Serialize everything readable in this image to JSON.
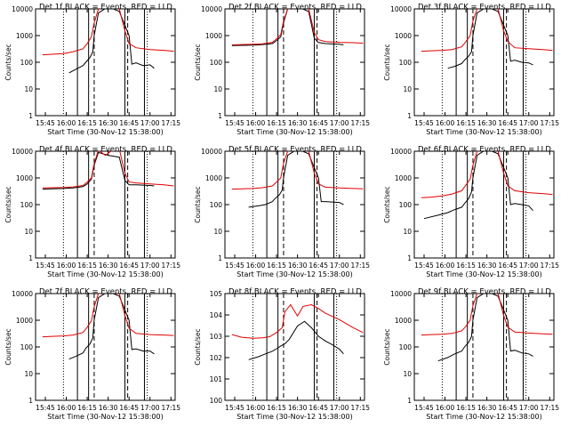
{
  "chart_data": [
    {
      "type": "line",
      "title": "Det 1f BLACK = Events, RED = LLD",
      "xlabel": "Start Time (30-Nov-12 15:38:00)",
      "ylabel": "Counts/sec",
      "x_ticks": [
        "15:45",
        "16:00",
        "16:15",
        "16:30",
        "16:45",
        "17:00",
        "17:15"
      ],
      "y_ticks": [
        "1",
        "10",
        "100",
        "1000",
        "10000"
      ],
      "ylim": [
        1,
        10000
      ],
      "y_scale": "log",
      "series": [
        {
          "color": "#000000",
          "x": [
            "16:02",
            "16:07",
            "16:12",
            "16:14",
            "16:17",
            "16:19",
            "16:20",
            "16:23",
            "16:30",
            "16:38",
            "16:45",
            "16:47",
            "16:50",
            "16:55",
            "17:00",
            "17:03"
          ],
          "values": [
            40,
            55,
            75,
            100,
            150,
            250,
            1000,
            7000,
            12000,
            8000,
            1000,
            85,
            95,
            75,
            80,
            60
          ]
        },
        {
          "color": "#e00000",
          "x": [
            "15:43",
            "15:50",
            "15:58",
            "16:05",
            "16:12",
            "16:15",
            "16:18",
            "16:20",
            "16:23",
            "16:30",
            "16:38",
            "16:42",
            "16:45",
            "16:50",
            "17:00",
            "17:10",
            "17:17"
          ],
          "values": [
            190,
            200,
            210,
            250,
            320,
            500,
            900,
            3000,
            10000,
            12000,
            10000,
            1500,
            500,
            350,
            300,
            280,
            260
          ]
        }
      ]
    },
    {
      "type": "line",
      "title": "Det 2f BLACK = Events, RED = LLD",
      "xlabel": "Start Time (30-Nov-12 15:38:00)",
      "ylabel": "Counts/sec",
      "x_ticks": [
        "15:45",
        "16:00",
        "16:15",
        "16:30",
        "16:45",
        "17:00",
        "17:15"
      ],
      "y_ticks": [
        "1",
        "10",
        "100",
        "1000",
        "10000"
      ],
      "ylim": [
        1,
        10000
      ],
      "y_scale": "log",
      "series": [
        {
          "color": "#000000",
          "x": [
            "15:43",
            "15:50",
            "15:58",
            "16:05",
            "16:12",
            "16:15",
            "16:18",
            "16:20",
            "16:23",
            "16:30",
            "16:38",
            "16:42",
            "16:45",
            "16:50",
            "17:00",
            "17:03"
          ],
          "values": [
            420,
            430,
            440,
            460,
            500,
            650,
            900,
            3000,
            10000,
            12000,
            8000,
            800,
            550,
            500,
            470,
            450
          ]
        },
        {
          "color": "#e00000",
          "x": [
            "15:43",
            "15:50",
            "15:58",
            "16:05",
            "16:12",
            "16:15",
            "16:18",
            "16:20",
            "16:23",
            "16:30",
            "16:38",
            "16:42",
            "16:45",
            "16:50",
            "17:00",
            "17:10",
            "17:17"
          ],
          "values": [
            450,
            460,
            470,
            490,
            560,
            750,
            1100,
            3500,
            10000,
            12000,
            10000,
            1300,
            700,
            600,
            560,
            540,
            520
          ]
        }
      ]
    },
    {
      "type": "line",
      "title": "Det 3f BLACK = Events, RED = LLD",
      "xlabel": "Start Time (30-Nov-12 15:38:00)",
      "ylabel": "Counts/sec",
      "x_ticks": [
        "15:45",
        "16:00",
        "16:15",
        "16:30",
        "16:45",
        "17:00",
        "17:15"
      ],
      "y_ticks": [
        "1",
        "10",
        "100",
        "1000",
        "10000"
      ],
      "ylim": [
        1,
        10000
      ],
      "y_scale": "log",
      "series": [
        {
          "color": "#000000",
          "x": [
            "16:02",
            "16:07",
            "16:12",
            "16:14",
            "16:17",
            "16:19",
            "16:20",
            "16:23",
            "16:30",
            "16:38",
            "16:45",
            "16:47",
            "16:50",
            "16:55",
            "17:00",
            "17:03"
          ],
          "values": [
            60,
            70,
            90,
            120,
            170,
            250,
            1000,
            7000,
            12000,
            8000,
            1000,
            110,
            120,
            100,
            95,
            80
          ]
        },
        {
          "color": "#e00000",
          "x": [
            "15:43",
            "15:50",
            "15:58",
            "16:05",
            "16:12",
            "16:15",
            "16:18",
            "16:20",
            "16:23",
            "16:30",
            "16:38",
            "16:42",
            "16:45",
            "16:50",
            "17:00",
            "17:10",
            "17:17"
          ],
          "values": [
            260,
            270,
            280,
            300,
            380,
            600,
            1000,
            3500,
            10000,
            12000,
            10000,
            1500,
            600,
            350,
            320,
            300,
            280
          ]
        }
      ]
    },
    {
      "type": "line",
      "title": "Det 4f BLACK = Events, RED = LLD",
      "xlabel": "Start Time (30-Nov-12 15:38:00)",
      "ylabel": "Counts/sec",
      "x_ticks": [
        "15:45",
        "16:00",
        "16:15",
        "16:30",
        "16:45",
        "17:00",
        "17:15"
      ],
      "y_ticks": [
        "1",
        "10",
        "100",
        "1000",
        "10000"
      ],
      "ylim": [
        1,
        10000
      ],
      "y_scale": "log",
      "series": [
        {
          "color": "#000000",
          "x": [
            "15:43",
            "15:50",
            "15:58",
            "16:05",
            "16:12",
            "16:15",
            "16:18",
            "16:20",
            "16:23",
            "16:30",
            "16:38",
            "16:42",
            "16:45",
            "16:50",
            "17:00",
            "17:03"
          ],
          "values": [
            380,
            390,
            400,
            420,
            470,
            600,
            900,
            3000,
            9000,
            7000,
            6000,
            800,
            550,
            550,
            520,
            500
          ]
        },
        {
          "color": "#e00000",
          "x": [
            "15:43",
            "15:50",
            "15:58",
            "16:05",
            "16:12",
            "16:15",
            "16:18",
            "16:20",
            "16:23",
            "16:28",
            "16:32",
            "16:38",
            "16:42",
            "16:45",
            "16:50",
            "17:00",
            "17:10",
            "17:17"
          ],
          "values": [
            420,
            430,
            440,
            460,
            520,
            700,
            1000,
            3500,
            11000,
            7000,
            10000,
            12000,
            1500,
            700,
            650,
            600,
            550,
            500
          ]
        }
      ]
    },
    {
      "type": "line",
      "title": "Det 5f BLACK = Events, RED = LLD",
      "xlabel": "Start Time (30-Nov-12 15:38:00)",
      "ylabel": "Counts/sec",
      "x_ticks": [
        "15:45",
        "16:00",
        "16:15",
        "16:30",
        "16:45",
        "17:00",
        "17:15"
      ],
      "y_ticks": [
        "1",
        "10",
        "100",
        "1000",
        "10000"
      ],
      "ylim": [
        1,
        10000
      ],
      "y_scale": "log",
      "series": [
        {
          "color": "#000000",
          "x": [
            "15:55",
            "16:02",
            "16:07",
            "16:12",
            "16:14",
            "16:17",
            "16:19",
            "16:20",
            "16:23",
            "16:30",
            "16:38",
            "16:45",
            "16:47",
            "16:50",
            "16:55",
            "17:00",
            "17:03"
          ],
          "values": [
            80,
            90,
            100,
            130,
            170,
            230,
            350,
            1000,
            7000,
            12000,
            8000,
            1000,
            130,
            130,
            125,
            120,
            100
          ]
        },
        {
          "color": "#e00000",
          "x": [
            "15:43",
            "15:50",
            "15:58",
            "16:05",
            "16:12",
            "16:15",
            "16:18",
            "16:20",
            "16:23",
            "16:30",
            "16:38",
            "16:42",
            "16:45",
            "16:50",
            "17:00",
            "17:10",
            "17:17"
          ],
          "values": [
            380,
            390,
            400,
            430,
            500,
            700,
            1000,
            3500,
            10000,
            12000,
            10000,
            1500,
            600,
            450,
            420,
            400,
            390
          ]
        }
      ]
    },
    {
      "type": "line",
      "title": "Det 6f BLACK = Events, RED = LLD",
      "xlabel": "Start Time (30-Nov-12 15:38:00)",
      "ylabel": "Counts/sec",
      "x_ticks": [
        "15:45",
        "16:00",
        "16:15",
        "16:30",
        "16:45",
        "17:00",
        "17:15"
      ],
      "y_ticks": [
        "1",
        "10",
        "100",
        "1000",
        "10000"
      ],
      "ylim": [
        1,
        10000
      ],
      "y_scale": "log",
      "series": [
        {
          "color": "#000000",
          "x": [
            "15:45",
            "15:55",
            "16:02",
            "16:07",
            "16:12",
            "16:14",
            "16:17",
            "16:19",
            "16:20",
            "16:23",
            "16:30",
            "16:38",
            "16:45",
            "16:47",
            "16:50",
            "16:55",
            "17:00",
            "17:03"
          ],
          "values": [
            30,
            40,
            50,
            65,
            80,
            110,
            170,
            300,
            1000,
            7000,
            12000,
            8000,
            1000,
            100,
            110,
            100,
            90,
            60
          ]
        },
        {
          "color": "#e00000",
          "x": [
            "15:43",
            "15:50",
            "15:58",
            "16:05",
            "16:12",
            "16:15",
            "16:18",
            "16:20",
            "16:23",
            "16:30",
            "16:38",
            "16:42",
            "16:45",
            "16:50",
            "17:00",
            "17:10",
            "17:17"
          ],
          "values": [
            180,
            190,
            210,
            250,
            330,
            550,
            900,
            3000,
            10000,
            12000,
            10000,
            1500,
            500,
            330,
            280,
            260,
            240
          ]
        }
      ]
    },
    {
      "type": "line",
      "title": "Det 7f BLACK = Events, RED = LLD",
      "xlabel": "Start Time (30-Nov-12 15:38:00)",
      "ylabel": "Counts/sec",
      "x_ticks": [
        "15:45",
        "16:00",
        "16:15",
        "16:30",
        "16:45",
        "17:00",
        "17:15"
      ],
      "y_ticks": [
        "1",
        "10",
        "100",
        "1000",
        "10000"
      ],
      "ylim": [
        1,
        10000
      ],
      "y_scale": "log",
      "series": [
        {
          "color": "#000000",
          "x": [
            "16:02",
            "16:07",
            "16:12",
            "16:14",
            "16:17",
            "16:19",
            "16:20",
            "16:23",
            "16:30",
            "16:38",
            "16:45",
            "16:47",
            "16:50",
            "16:55",
            "17:00",
            "17:03"
          ],
          "values": [
            35,
            45,
            60,
            90,
            130,
            220,
            1000,
            7000,
            12000,
            8000,
            1000,
            80,
            85,
            70,
            70,
            55
          ]
        },
        {
          "color": "#e00000",
          "x": [
            "15:43",
            "15:50",
            "15:58",
            "16:05",
            "16:12",
            "16:15",
            "16:18",
            "16:20",
            "16:23",
            "16:30",
            "16:38",
            "16:42",
            "16:45",
            "16:50",
            "17:00",
            "17:10",
            "17:17"
          ],
          "values": [
            240,
            250,
            260,
            280,
            350,
            550,
            950,
            3200,
            10000,
            12000,
            10000,
            1500,
            500,
            320,
            290,
            280,
            270
          ]
        }
      ]
    },
    {
      "type": "line",
      "title": "Det 8f BLACK = Events, RED = LLD",
      "xlabel": "Start Time (30-Nov-12 15:38:00)",
      "ylabel": "Counts/sec",
      "x_ticks": [
        "15:45",
        "16:00",
        "16:15",
        "16:30",
        "16:45",
        "17:00",
        "17:15"
      ],
      "y_ticks": [
        "10^0",
        "10^1",
        "10^2",
        "10^3",
        "10^4",
        "10^5"
      ],
      "ylim": [
        1,
        100000
      ],
      "y_scale": "log",
      "series": [
        {
          "color": "#000000",
          "x": [
            "15:55",
            "16:02",
            "16:07",
            "16:12",
            "16:15",
            "16:18",
            "16:21",
            "16:24",
            "16:30",
            "16:35",
            "16:40",
            "16:45",
            "16:50",
            "16:55",
            "17:00",
            "17:03"
          ],
          "values": [
            80,
            110,
            150,
            200,
            260,
            350,
            450,
            700,
            3000,
            5000,
            2500,
            1000,
            600,
            400,
            250,
            150
          ]
        },
        {
          "color": "#e00000",
          "x": [
            "15:43",
            "15:50",
            "15:58",
            "16:05",
            "16:10",
            "16:15",
            "16:19",
            "16:21",
            "16:25",
            "16:30",
            "16:34",
            "16:40",
            "16:45",
            "16:50",
            "17:00",
            "17:10",
            "17:17"
          ],
          "values": [
            1200,
            900,
            800,
            850,
            950,
            1500,
            2500,
            14000,
            30000,
            9000,
            25000,
            30000,
            20000,
            12000,
            6000,
            2500,
            1500
          ]
        }
      ]
    },
    {
      "type": "line",
      "title": "Det 9f BLACK = Events, RED = LLD",
      "xlabel": "Start Time (30-Nov-12 15:38:00)",
      "ylabel": "Counts/sec",
      "x_ticks": [
        "15:45",
        "16:00",
        "16:15",
        "16:30",
        "16:45",
        "17:00",
        "17:15"
      ],
      "y_ticks": [
        "1",
        "10",
        "100",
        "1000",
        "10000"
      ],
      "ylim": [
        1,
        10000
      ],
      "y_scale": "log",
      "series": [
        {
          "color": "#000000",
          "x": [
            "15:55",
            "16:02",
            "16:07",
            "16:12",
            "16:14",
            "16:17",
            "16:19",
            "16:20",
            "16:23",
            "16:30",
            "16:38",
            "16:45",
            "16:47",
            "16:50",
            "16:55",
            "17:00",
            "17:03"
          ],
          "values": [
            30,
            40,
            55,
            70,
            100,
            150,
            250,
            1000,
            7000,
            12000,
            8000,
            1000,
            70,
            75,
            60,
            55,
            45
          ]
        },
        {
          "color": "#e00000",
          "x": [
            "15:43",
            "15:50",
            "15:58",
            "16:05",
            "16:12",
            "16:15",
            "16:18",
            "16:20",
            "16:23",
            "16:30",
            "16:38",
            "16:42",
            "16:45",
            "16:50",
            "17:00",
            "17:10",
            "17:17"
          ],
          "values": [
            280,
            290,
            300,
            320,
            400,
            600,
            1000,
            3500,
            10000,
            12000,
            10000,
            1500,
            550,
            360,
            330,
            310,
            300
          ]
        }
      ]
    }
  ]
}
